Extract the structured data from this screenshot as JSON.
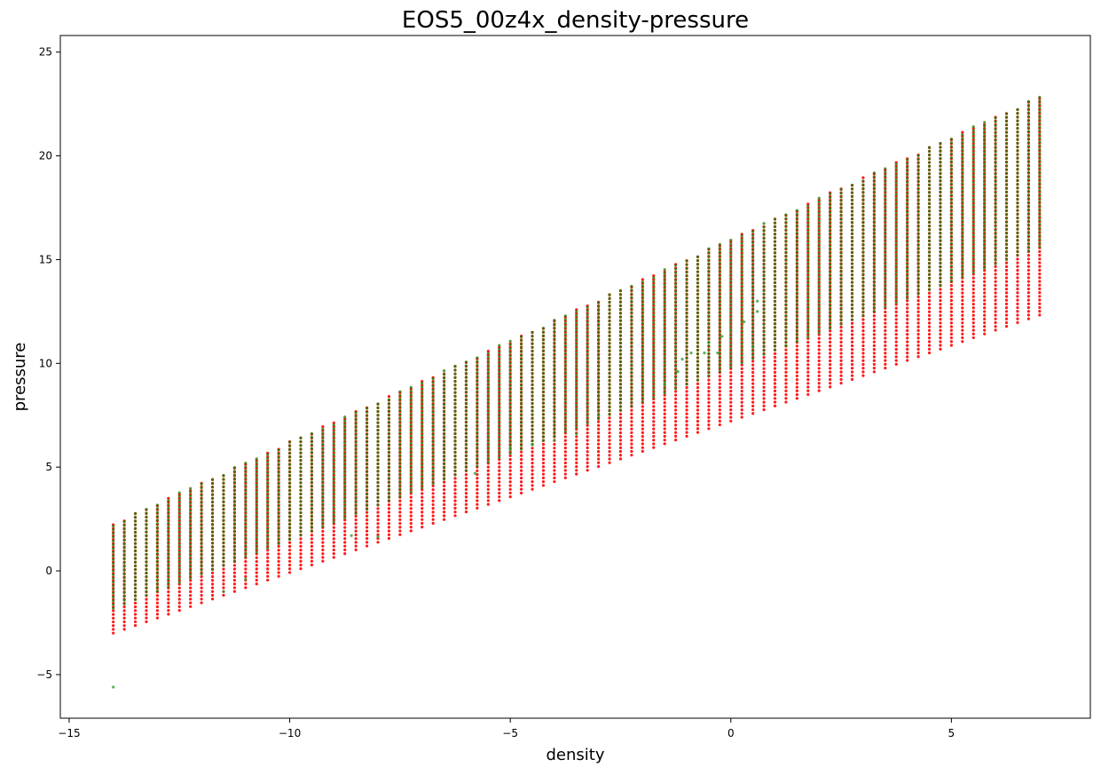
{
  "chart_data": {
    "type": "scatter",
    "title": "EOS5_00z4x_density-pressure",
    "xlabel": "density",
    "ylabel": "pressure",
    "xlim": [
      -15.2,
      8.15
    ],
    "ylim": [
      -7.1,
      25.8
    ],
    "xticks": [
      -15,
      -10,
      -5,
      0,
      5
    ],
    "yticks": [
      -5,
      0,
      5,
      10,
      15,
      20,
      25
    ],
    "xtick_labels": [
      "−15",
      "−10",
      "−5",
      "0",
      "5"
    ],
    "ytick_labels": [
      "−5",
      "0",
      "5",
      "10",
      "15",
      "20",
      "25"
    ],
    "grid": false,
    "legend": "none",
    "series": [
      {
        "color": "#ff0000",
        "description_of_points": "density columns every 0.25 from -14 to 7; each column spans a pressure range",
        "columns": {
          "x_start": -14.0,
          "x_end": 7.0,
          "x_step": 0.25,
          "y_bottom_at_x_start": -3.0,
          "y_bottom_slope": 0.73,
          "y_top_at_x_start": 2.3,
          "y_top_slope": 0.98
        }
      },
      {
        "color": "#1f7a00",
        "description_of_points": "density columns every 0.25 from -14 to 7, overlaying the red columns; lower extent higher than red",
        "columns": {
          "x_start": -14.0,
          "x_end": 7.0,
          "x_step": 0.25,
          "y_bottom_at_x_start": -1.8,
          "y_bottom_slope": 0.83,
          "y_top_at_x_start": 2.3,
          "y_top_slope": 0.98
        }
      }
    ],
    "outliers": [
      {
        "x": -14.0,
        "y": -5.6
      },
      {
        "x": -11.5,
        "y": -1.0
      },
      {
        "x": -11.0,
        "y": -0.4
      },
      {
        "x": -8.6,
        "y": 1.7
      },
      {
        "x": -8.0,
        "y": 1.65
      },
      {
        "x": -5.8,
        "y": 4.7
      },
      {
        "x": -5.0,
        "y": 5.9
      },
      {
        "x": -4.5,
        "y": 6.1
      },
      {
        "x": -4.0,
        "y": 6.3
      },
      {
        "x": -3.5,
        "y": 6.6
      },
      {
        "x": -3.0,
        "y": 7.5
      },
      {
        "x": -1.5,
        "y": 9.0
      },
      {
        "x": -1.2,
        "y": 9.6
      },
      {
        "x": -1.1,
        "y": 10.2
      },
      {
        "x": -0.9,
        "y": 10.5
      },
      {
        "x": -0.6,
        "y": 10.5
      },
      {
        "x": -0.3,
        "y": 10.5
      },
      {
        "x": -0.5,
        "y": 11.0
      },
      {
        "x": -0.2,
        "y": 11.3
      },
      {
        "x": 0.0,
        "y": 11.6
      },
      {
        "x": 0.5,
        "y": 10.8
      },
      {
        "x": 0.3,
        "y": 12.0
      },
      {
        "x": 0.6,
        "y": 12.5
      },
      {
        "x": 0.6,
        "y": 13.0
      }
    ]
  }
}
